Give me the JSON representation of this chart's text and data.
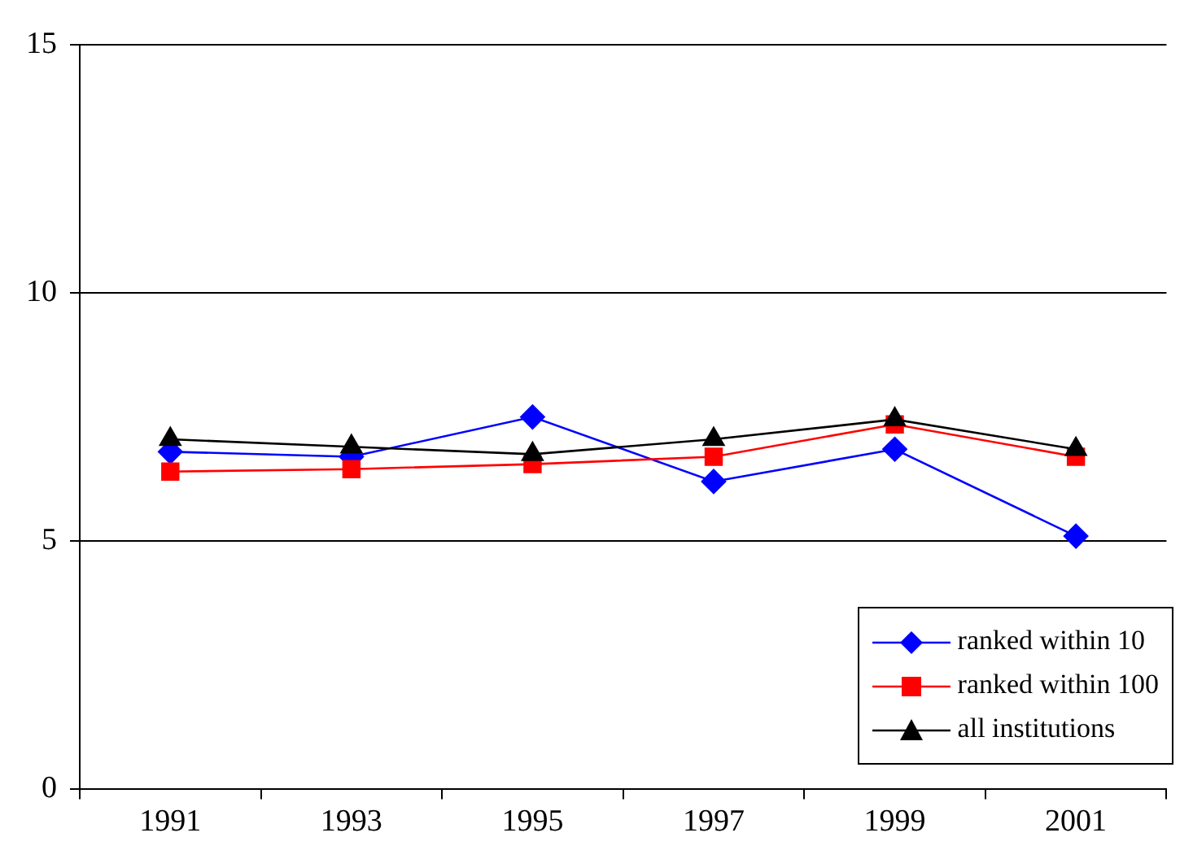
{
  "chart_data": {
    "type": "line",
    "categories": [
      "1991",
      "1993",
      "1995",
      "1997",
      "1999",
      "2001"
    ],
    "series": [
      {
        "name": "ranked within 10",
        "color": "#0000ff",
        "marker": "diamond",
        "values": [
          6.8,
          6.7,
          7.5,
          6.2,
          6.85,
          5.1
        ]
      },
      {
        "name": "ranked within 100",
        "color": "#ff0000",
        "marker": "square",
        "values": [
          6.4,
          6.45,
          6.55,
          6.7,
          7.35,
          6.7
        ]
      },
      {
        "name": "all institutions",
        "color": "#000000",
        "marker": "triangle",
        "values": [
          7.05,
          6.9,
          6.75,
          7.05,
          7.45,
          6.85
        ]
      }
    ],
    "ylim": [
      0,
      15
    ],
    "yticks": [
      0,
      5,
      10,
      15
    ],
    "grid": "y",
    "legend": "bottom right"
  }
}
